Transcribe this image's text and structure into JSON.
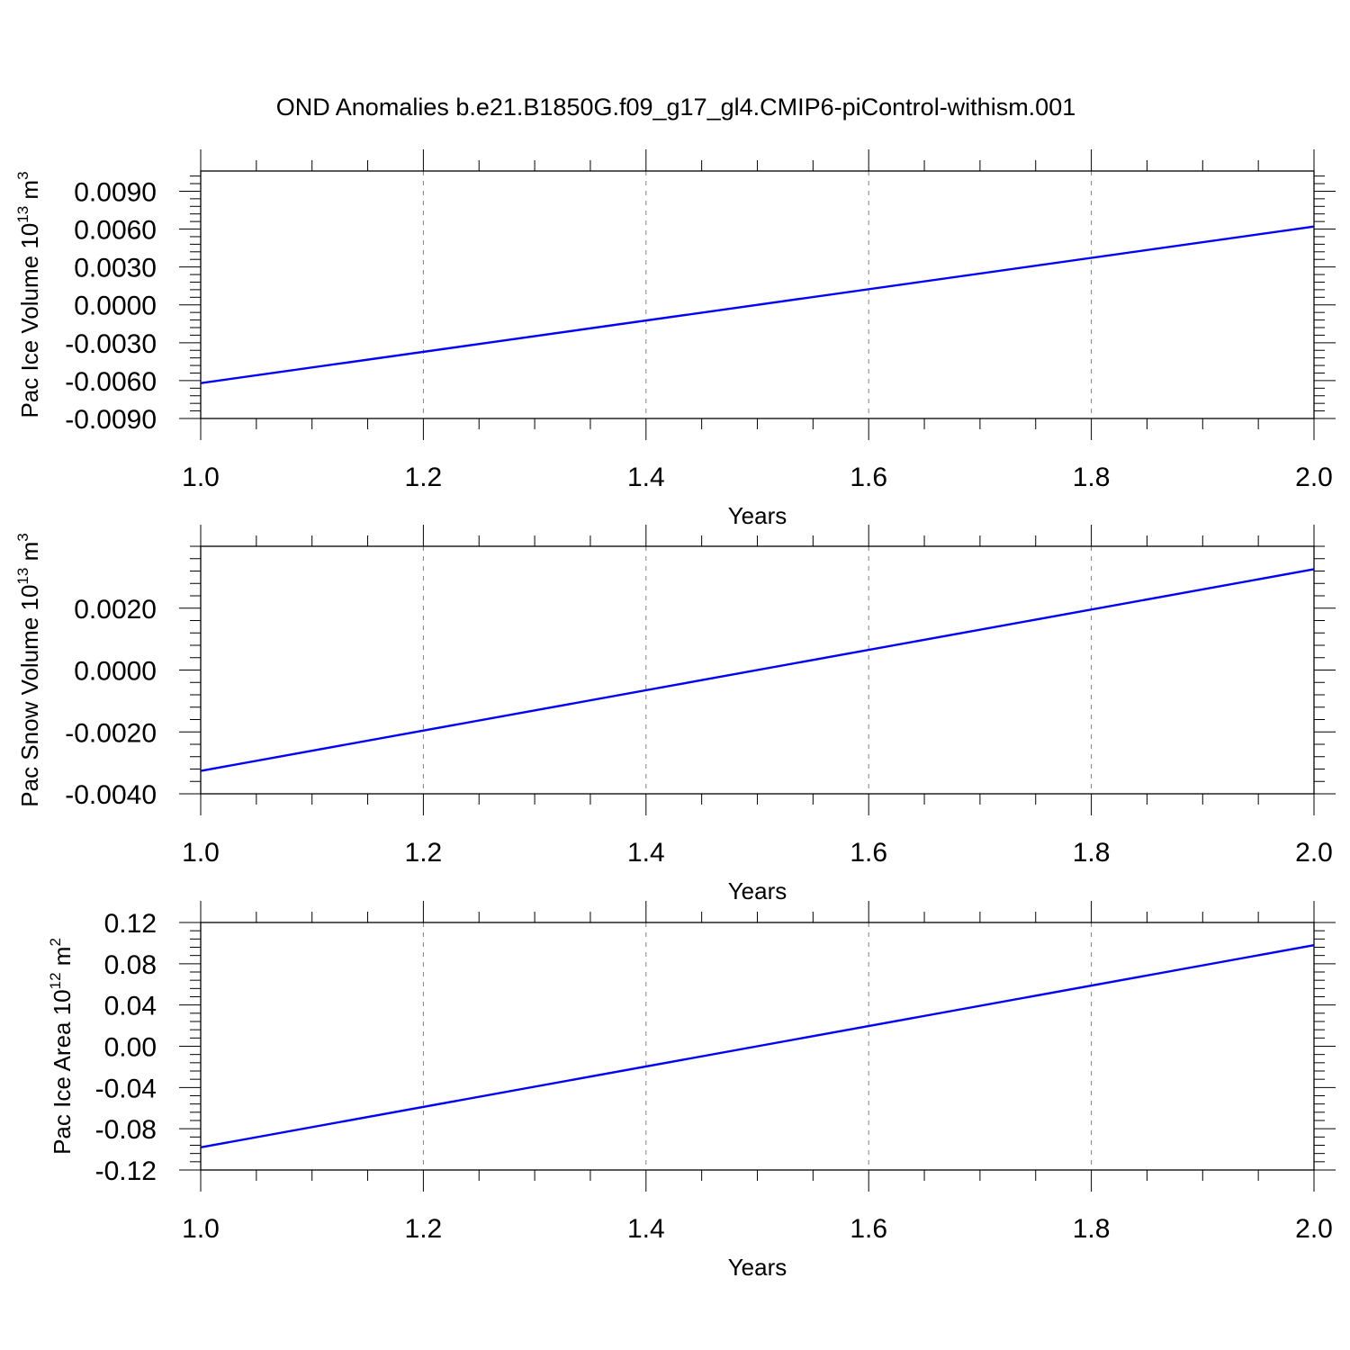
{
  "figure_title": "OND Anomalies b.e21.B1850G.f09_g17_gl4.CMIP6-piControl-withism.001",
  "colors": {
    "line": "#0000ff",
    "axis": "#000000",
    "grid": "#808080",
    "background": "#ffffff"
  },
  "chart_data": [
    {
      "type": "line",
      "title": "OND Anomalies b.e21.B1850G.f09_g17_gl4.CMIP6-piControl-withism.001",
      "xlabel": "Years",
      "ylabel": {
        "text": "Pac Ice Volume 10",
        "exponent": "13",
        "unit": "m",
        "unit_exponent": "3"
      },
      "xlim": [
        1.0,
        2.0
      ],
      "ylim": [
        -0.009,
        0.0106
      ],
      "x_ticks": [
        "1.0",
        "1.2",
        "1.4",
        "1.6",
        "1.8",
        "2.0"
      ],
      "x_tick_values": [
        1.0,
        1.2,
        1.4,
        1.6,
        1.8,
        2.0
      ],
      "y_ticks": [
        "0.0090",
        "0.0060",
        "0.0030",
        "0.0000",
        "-0.0030",
        "-0.0060",
        "-0.0090"
      ],
      "y_tick_values": [
        0.009,
        0.006,
        0.003,
        0.0,
        -0.003,
        -0.006,
        -0.009
      ],
      "grid": "x-dashed",
      "series": [
        {
          "x": [
            1.0,
            2.0
          ],
          "y": [
            -0.0062,
            0.0062
          ]
        }
      ]
    },
    {
      "type": "line",
      "xlabel": "Years",
      "ylabel": {
        "text": "Pac Snow Volume 10",
        "exponent": "13",
        "unit": "m",
        "unit_exponent": "3"
      },
      "xlim": [
        1.0,
        2.0
      ],
      "ylim": [
        -0.004,
        0.004
      ],
      "x_ticks": [
        "1.0",
        "1.2",
        "1.4",
        "1.6",
        "1.8",
        "2.0"
      ],
      "x_tick_values": [
        1.0,
        1.2,
        1.4,
        1.6,
        1.8,
        2.0
      ],
      "y_ticks": [
        "0.0020",
        "0.0000",
        "-0.0020",
        "-0.0040"
      ],
      "y_tick_values": [
        0.002,
        0.0,
        -0.002,
        -0.004
      ],
      "grid": "x-dashed",
      "series": [
        {
          "x": [
            1.0,
            2.0
          ],
          "y": [
            -0.00326,
            0.00326
          ]
        }
      ]
    },
    {
      "type": "line",
      "xlabel": "Years",
      "ylabel": {
        "text": "Pac Ice Area 10",
        "exponent": "12",
        "unit": "m",
        "unit_exponent": "2"
      },
      "xlim": [
        1.0,
        2.0
      ],
      "ylim": [
        -0.12,
        0.12
      ],
      "x_ticks": [
        "1.0",
        "1.2",
        "1.4",
        "1.6",
        "1.8",
        "2.0"
      ],
      "x_tick_values": [
        1.0,
        1.2,
        1.4,
        1.6,
        1.8,
        2.0
      ],
      "y_ticks": [
        "0.12",
        "0.08",
        "0.04",
        "0.00",
        "-0.04",
        "-0.08",
        "-0.12"
      ],
      "y_tick_values": [
        0.12,
        0.08,
        0.04,
        0.0,
        -0.04,
        -0.08,
        -0.12
      ],
      "grid": "x-dashed",
      "series": [
        {
          "x": [
            1.0,
            2.0
          ],
          "y": [
            -0.098,
            0.098
          ]
        }
      ]
    }
  ]
}
